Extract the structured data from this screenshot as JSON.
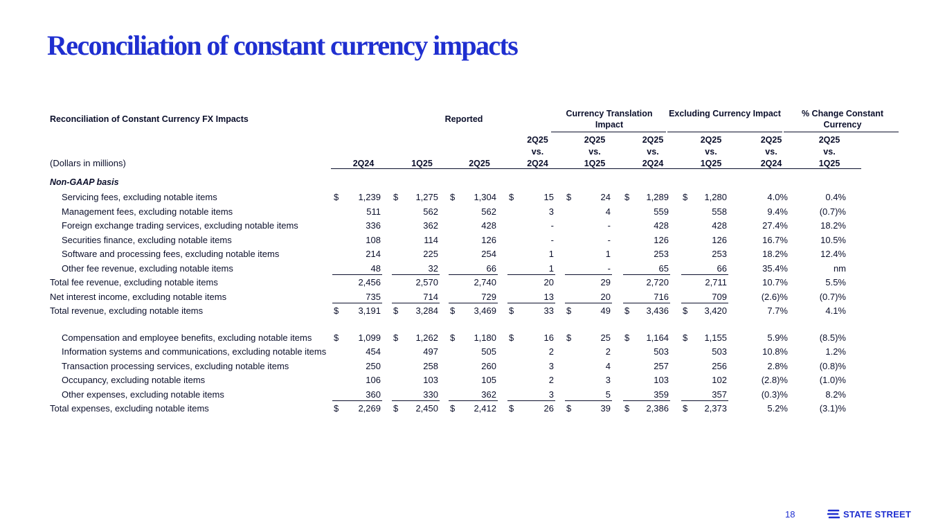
{
  "page": {
    "title": "Reconciliation of constant currency impacts",
    "page_number": "18",
    "brand": "STATE STREET"
  },
  "header": {
    "table_title": "Reconciliation of Constant Currency FX Impacts",
    "units": "(Dollars in millions)",
    "groups": {
      "reported": "Reported",
      "translation": "Currency Translation Impact",
      "excluding": "Excluding Currency Impact",
      "pct": "% Change Constant Currency"
    },
    "columns": [
      {
        "top": "",
        "mid": "",
        "bot": "2Q24"
      },
      {
        "top": "",
        "mid": "",
        "bot": "1Q25"
      },
      {
        "top": "",
        "mid": "",
        "bot": "2Q25"
      },
      {
        "top": "2Q25",
        "mid": "vs.",
        "bot": "2Q24"
      },
      {
        "top": "2Q25",
        "mid": "vs.",
        "bot": "1Q25"
      },
      {
        "top": "2Q25",
        "mid": "vs.",
        "bot": "2Q24"
      },
      {
        "top": "2Q25",
        "mid": "vs.",
        "bot": "1Q25"
      },
      {
        "top": "2Q25",
        "mid": "vs.",
        "bot": "2Q24"
      },
      {
        "top": "2Q25",
        "mid": "vs.",
        "bot": "1Q25"
      }
    ]
  },
  "rows": [
    {
      "type": "section",
      "label": "Non-GAAP basis"
    },
    {
      "type": "item",
      "indent": true,
      "dollar": true,
      "label": "Servicing fees, excluding notable items",
      "values": [
        "1,239",
        "1,275",
        "1,304",
        "15",
        "24",
        "1,289",
        "1,280",
        "4.0%",
        "0.4%"
      ]
    },
    {
      "type": "item",
      "indent": true,
      "label": "Management fees, excluding notable items",
      "values": [
        "511",
        "562",
        "562",
        "3",
        "4",
        "559",
        "558",
        "9.4%",
        "(0.7)%"
      ]
    },
    {
      "type": "item",
      "indent": true,
      "label": "Foreign exchange trading services, excluding notable items",
      "values": [
        "336",
        "362",
        "428",
        "-",
        "-",
        "428",
        "428",
        "27.4%",
        "18.2%"
      ]
    },
    {
      "type": "item",
      "indent": true,
      "label": "Securities finance, excluding notable items",
      "values": [
        "108",
        "114",
        "126",
        "-",
        "-",
        "126",
        "126",
        "16.7%",
        "10.5%"
      ]
    },
    {
      "type": "item",
      "indent": true,
      "label": "Software and processing fees, excluding notable items",
      "values": [
        "214",
        "225",
        "254",
        "1",
        "1",
        "253",
        "253",
        "18.2%",
        "12.4%"
      ]
    },
    {
      "type": "item",
      "indent": true,
      "underline": true,
      "label": "Other fee revenue, excluding notable items",
      "values": [
        "48",
        "32",
        "66",
        "1",
        "-",
        "65",
        "66",
        "35.4%",
        "nm"
      ]
    },
    {
      "type": "item",
      "label": "Total fee revenue, excluding notable items",
      "values": [
        "2,456",
        "2,570",
        "2,740",
        "20",
        "29",
        "2,720",
        "2,711",
        "10.7%",
        "5.5%"
      ]
    },
    {
      "type": "item",
      "underline": true,
      "label": "Net interest income, excluding notable items",
      "values": [
        "735",
        "714",
        "729",
        "13",
        "20",
        "716",
        "709",
        "(2.6)%",
        "(0.7)%"
      ]
    },
    {
      "type": "item",
      "dollar": true,
      "label": "Total revenue, excluding notable items",
      "values": [
        "3,191",
        "3,284",
        "3,469",
        "33",
        "49",
        "3,436",
        "3,420",
        "7.7%",
        "4.1%"
      ]
    },
    {
      "type": "spacer"
    },
    {
      "type": "item",
      "indent": true,
      "dollar": true,
      "label": "Compensation and employee benefits, excluding notable items",
      "values": [
        "1,099",
        "1,262",
        "1,180",
        "16",
        "25",
        "1,164",
        "1,155",
        "5.9%",
        "(8.5)%"
      ]
    },
    {
      "type": "item",
      "indent": true,
      "label": "Information systems and communications, excluding notable items",
      "values": [
        "454",
        "497",
        "505",
        "2",
        "2",
        "503",
        "503",
        "10.8%",
        "1.2%"
      ]
    },
    {
      "type": "item",
      "indent": true,
      "label": "Transaction processing services, excluding notable items",
      "values": [
        "250",
        "258",
        "260",
        "3",
        "4",
        "257",
        "256",
        "2.8%",
        "(0.8)%"
      ]
    },
    {
      "type": "item",
      "indent": true,
      "label": "Occupancy, excluding notable items",
      "values": [
        "106",
        "103",
        "105",
        "2",
        "3",
        "103",
        "102",
        "(2.8)%",
        "(1.0)%"
      ]
    },
    {
      "type": "item",
      "indent": true,
      "underline": true,
      "label": "Other expenses, excluding notable items",
      "values": [
        "360",
        "330",
        "362",
        "3",
        "5",
        "359",
        "357",
        "(0.3)%",
        "8.2%"
      ]
    },
    {
      "type": "item",
      "dollar": true,
      "label": "Total expenses, excluding notable items",
      "values": [
        "2,269",
        "2,450",
        "2,412",
        "26",
        "39",
        "2,386",
        "2,373",
        "5.2%",
        "(3.1)%"
      ]
    }
  ]
}
